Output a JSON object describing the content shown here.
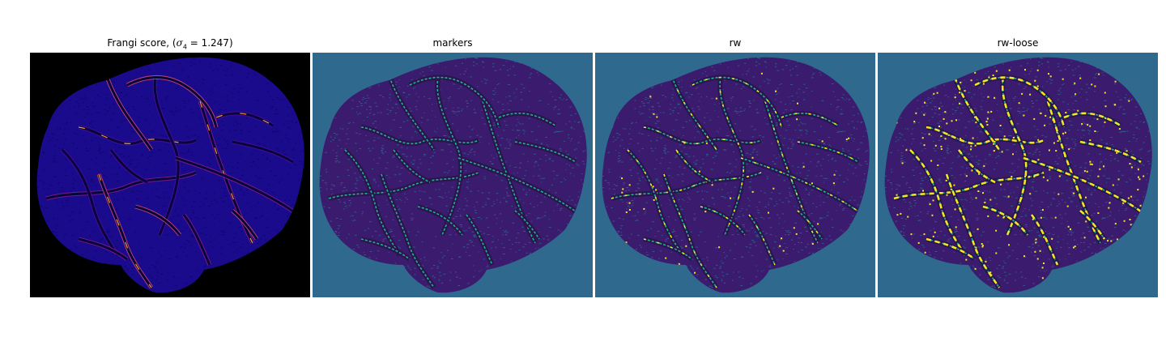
{
  "figure": {
    "panels": [
      {
        "id": "frangi",
        "title_prefix": "Frangi score, (",
        "title_symbol": "σ",
        "title_subscript": "4",
        "title_suffix": " = 1.247)",
        "background_color": "#000000",
        "tissue_color": "#1a0a8c",
        "texture_color": "#0b0570",
        "vessel_colors": [
          "#4a0f9c",
          "#8a1c8a",
          "#d24b6a",
          "#f49a3a",
          "#f6e65a"
        ]
      },
      {
        "id": "markers",
        "title": "markers",
        "background_color": "#2f6a8e",
        "tissue_color": "#3b1b6e",
        "texture_color": "#2f6a8e",
        "vessel_colors": [
          "#25b08c",
          "#2ec09a"
        ]
      },
      {
        "id": "rw",
        "title": "rw",
        "background_color": "#2f6a8e",
        "tissue_color": "#3b1b6e",
        "texture_color": "#2f6a8e",
        "vessel_colors": [
          "#25b08c",
          "#f5e623"
        ]
      },
      {
        "id": "rw-loose",
        "title": "rw-loose",
        "background_color": "#2f6a8e",
        "tissue_color": "#3b1b6e",
        "texture_color": "#2f6a8e",
        "vessel_colors": [
          "#25b08c",
          "#f5e623",
          "#d8e219"
        ]
      }
    ]
  }
}
